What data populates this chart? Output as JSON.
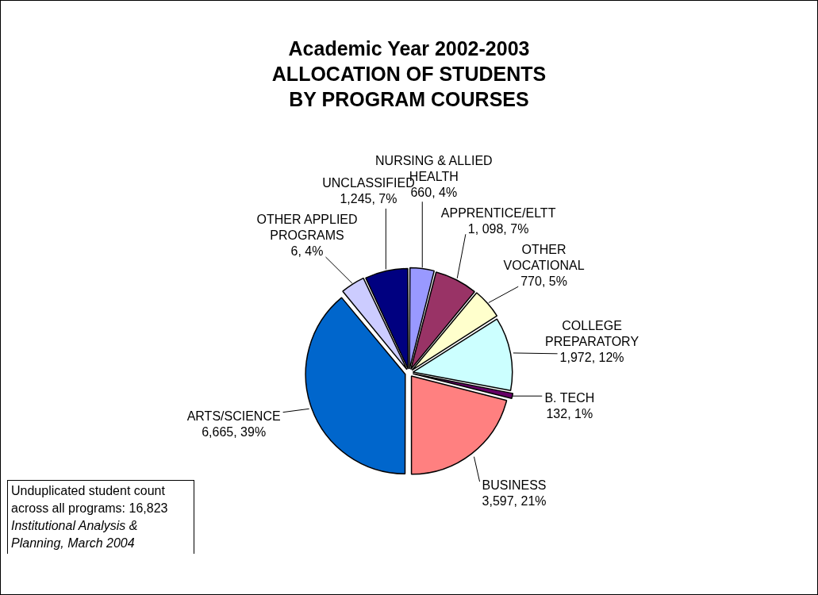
{
  "chart_data": {
    "type": "pie",
    "title": "Academic Year 2002-2003\nALLOCATION OF STUDENTS\nBY PROGRAM COURSES",
    "categories": [
      "NURSING & ALLIED HEALTH",
      "APPRENTICE/ELTT",
      "OTHER VOCATIONAL",
      "COLLEGE PREPARATORY",
      "B. TECH",
      "BUSINESS",
      "ARTS/SCIENCE",
      "OTHER APPLIED PROGRAMS",
      "UNCLASSIFIED"
    ],
    "values": [
      4,
      7,
      5,
      12,
      1,
      21,
      39,
      4,
      7
    ],
    "value_labels": [
      "660, 4%",
      "1, 098, 7%",
      "770, 5%",
      "1,972, 12%",
      "132, 1%",
      "3,597, 21%",
      "6,665, 39%",
      "6, 4%",
      "1,245, 7%"
    ],
    "colors": [
      "#9999ff",
      "#993366",
      "#ffffcc",
      "#ccffff",
      "#660066",
      "#ff8080",
      "#0066cc",
      "#ccccff",
      "#000080"
    ],
    "legend": false,
    "annotations": [
      "Unduplicated student count across all programs: 16,823",
      "Institutional Analysis & Planning, March 2004"
    ]
  }
}
